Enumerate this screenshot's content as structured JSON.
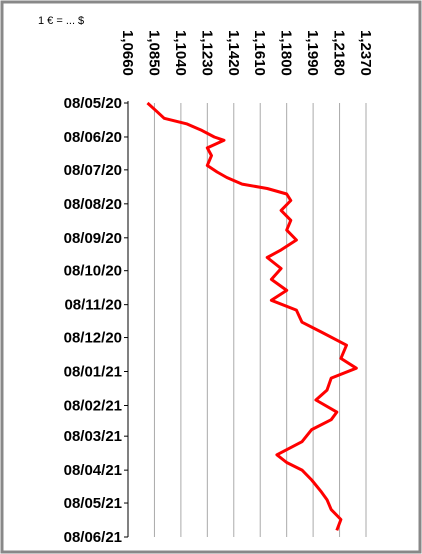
{
  "chart_data": {
    "type": "line",
    "title": "1 € = ... $",
    "xlim": [
      1.066,
      1.237
    ],
    "xticks": [
      {
        "value": 1.066,
        "label": "1,0660"
      },
      {
        "value": 1.085,
        "label": "1,0850"
      },
      {
        "value": 1.104,
        "label": "1,1040"
      },
      {
        "value": 1.123,
        "label": "1,1230"
      },
      {
        "value": 1.142,
        "label": "1,1420"
      },
      {
        "value": 1.161,
        "label": "1,1610"
      },
      {
        "value": 1.18,
        "label": "1,1800"
      },
      {
        "value": 1.199,
        "label": "1,1990"
      },
      {
        "value": 1.218,
        "label": "1,2180"
      },
      {
        "value": 1.237,
        "label": "1,2370"
      }
    ],
    "ylim": [
      "2020-05-08",
      "2021-06-08"
    ],
    "yticks": [
      {
        "value": "2020-05-08",
        "label": "08/05/20"
      },
      {
        "value": "2020-06-08",
        "label": "08/06/20"
      },
      {
        "value": "2020-07-08",
        "label": "08/07/20"
      },
      {
        "value": "2020-08-08",
        "label": "08/08/20"
      },
      {
        "value": "2020-09-08",
        "label": "08/09/20"
      },
      {
        "value": "2020-10-08",
        "label": "08/10/20"
      },
      {
        "value": "2020-11-08",
        "label": "08/11/20"
      },
      {
        "value": "2020-12-08",
        "label": "08/12/20"
      },
      {
        "value": "2021-01-08",
        "label": "08/01/21"
      },
      {
        "value": "2021-02-08",
        "label": "08/02/21"
      },
      {
        "value": "2021-03-08",
        "label": "08/03/21"
      },
      {
        "value": "2021-04-08",
        "label": "08/04/21"
      },
      {
        "value": "2021-05-08",
        "label": "08/05/21"
      },
      {
        "value": "2021-06-08",
        "label": "08/06/21"
      }
    ],
    "grid": true,
    "series": [
      {
        "color": "#ff0000",
        "x": [
          "2020-05-08",
          "2020-05-16",
          "2020-05-22",
          "2020-05-27",
          "2020-06-02",
          "2020-06-08",
          "2020-06-11",
          "2020-06-18",
          "2020-06-25",
          "2020-07-04",
          "2020-07-10",
          "2020-07-15",
          "2020-07-21",
          "2020-07-25",
          "2020-07-30",
          "2020-08-05",
          "2020-08-14",
          "2020-08-23",
          "2020-09-01",
          "2020-09-10",
          "2020-09-19",
          "2020-09-26",
          "2020-10-06",
          "2020-10-16",
          "2020-10-26",
          "2020-11-04",
          "2020-11-13",
          "2020-11-24",
          "2020-12-03",
          "2020-12-15",
          "2020-12-27",
          "2021-01-05",
          "2021-01-14",
          "2021-01-25",
          "2021-02-03",
          "2021-02-14",
          "2021-02-21",
          "2021-03-02",
          "2021-03-13",
          "2021-03-25",
          "2021-04-01",
          "2021-04-08",
          "2021-04-17",
          "2021-04-28",
          "2021-05-05",
          "2021-05-14",
          "2021-05-23",
          "2021-06-02"
        ],
        "values": [
          1.08,
          1.087,
          1.092,
          1.108,
          1.119,
          1.128,
          1.135,
          1.123,
          1.126,
          1.123,
          1.13,
          1.137,
          1.148,
          1.166,
          1.18,
          1.183,
          1.176,
          1.183,
          1.18,
          1.187,
          1.176,
          1.166,
          1.176,
          1.169,
          1.18,
          1.169,
          1.187,
          1.191,
          1.205,
          1.223,
          1.219,
          1.23,
          1.212,
          1.209,
          1.201,
          1.216,
          1.212,
          1.198,
          1.191,
          1.173,
          1.18,
          1.191,
          1.198,
          1.205,
          1.209,
          1.212,
          1.219,
          1.216
        ]
      }
    ]
  }
}
